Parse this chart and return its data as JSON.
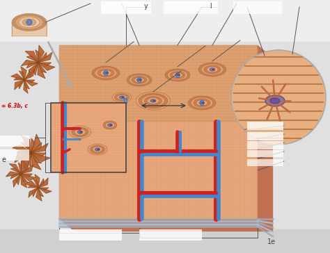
{
  "bg_color": "#f2f2f2",
  "bone_main": "#e8a87c",
  "bone_dark": "#c8855a",
  "bone_top": "#dda070",
  "bone_side": "#c07050",
  "lamellae_color": "#b87848",
  "blood_red": "#cc2222",
  "blood_blue": "#4488cc",
  "blood_blue_dark": "#2255aa",
  "periosteum_gray": "#aabbcc",
  "spongy_color": "#b86030",
  "spongy_dark": "#8B4513",
  "circle_bg": "#e8b080",
  "circle_stroke": "#aaaaaa",
  "osteocyte_color": "#9988aa",
  "process_color": "#c06840",
  "fiber_color": "#b07040",
  "red_text": "#cc0000",
  "dark_text": "#333333",
  "gray_text": "#666666",
  "white_label": "#ffffff",
  "white_box": "#f8f8f8",
  "annotation_line": "#555555",
  "page_bg": "#e0e0e0",
  "page_bottom": "#d0d0d0",
  "inset_box_color": "#444444",
  "arrow_color": "#888888",
  "ref_text": "= 6.3b, c",
  "page_num": "1e",
  "label_y": "y",
  "label_l": "l"
}
